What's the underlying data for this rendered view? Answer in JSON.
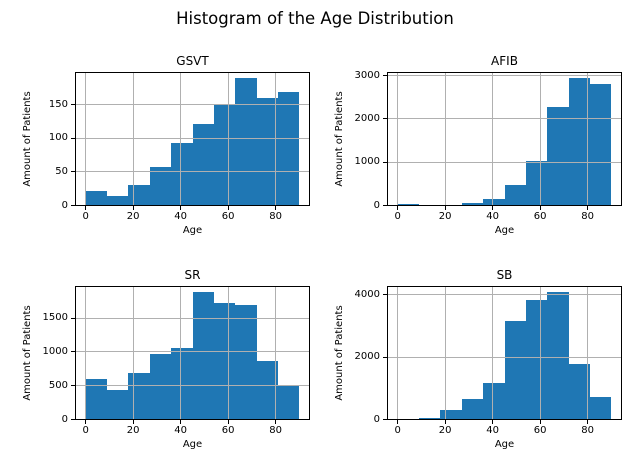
{
  "title": "Histogram of the Age Distribution",
  "colors": {
    "bar": "#1f77b4",
    "grid": "#b0b0b0",
    "spine": "#000000",
    "background": "#ffffff",
    "text": "#000000"
  },
  "chart_data": [
    {
      "type": "bar",
      "subtype": "histogram",
      "title": "GSVT",
      "xlabel": "Age",
      "ylabel": "Amount of Patients",
      "bin_edges": [
        0,
        9,
        18,
        27,
        36,
        45,
        54,
        63,
        72,
        81,
        90
      ],
      "values": [
        22,
        15,
        31,
        58,
        94,
        122,
        151,
        190,
        161,
        170
      ],
      "xlim": [
        -4.5,
        94.5
      ],
      "ylim": [
        0,
        199.5
      ],
      "xticks": [
        0,
        20,
        40,
        60,
        80
      ],
      "yticks": [
        0,
        50,
        100,
        150
      ],
      "grid": true,
      "legend": null
    },
    {
      "type": "bar",
      "subtype": "histogram",
      "title": "AFIB",
      "xlabel": "Age",
      "ylabel": "Amount of Patients",
      "bin_edges": [
        0,
        9,
        18,
        27,
        36,
        45,
        54,
        63,
        72,
        81,
        90
      ],
      "values": [
        40,
        12,
        32,
        70,
        170,
        480,
        1030,
        2290,
        2950,
        2810
      ],
      "xlim": [
        -4.5,
        94.5
      ],
      "ylim": [
        0,
        3097.5
      ],
      "xticks": [
        0,
        20,
        40,
        60,
        80
      ],
      "yticks": [
        0,
        1000,
        2000,
        3000
      ],
      "grid": true,
      "legend": null
    },
    {
      "type": "bar",
      "subtype": "histogram",
      "title": "SR",
      "xlabel": "Age",
      "ylabel": "Amount of Patients",
      "bin_edges": [
        0,
        9,
        18,
        27,
        36,
        45,
        54,
        63,
        72,
        81,
        90
      ],
      "values": [
        610,
        445,
        690,
        980,
        1060,
        1890,
        1740,
        1700,
        870,
        510
      ],
      "xlim": [
        -4.5,
        94.5
      ],
      "ylim": [
        0,
        1984.5
      ],
      "xticks": [
        0,
        20,
        40,
        60,
        80
      ],
      "yticks": [
        0,
        500,
        1000,
        1500
      ],
      "grid": true,
      "legend": null
    },
    {
      "type": "bar",
      "subtype": "histogram",
      "title": "SB",
      "xlabel": "Age",
      "ylabel": "Amount of Patients",
      "bin_edges": [
        0,
        9,
        18,
        27,
        36,
        45,
        54,
        63,
        72,
        81,
        90
      ],
      "values": [
        30,
        70,
        320,
        670,
        1200,
        3170,
        3840,
        4090,
        1800,
        750
      ],
      "xlim": [
        -4.5,
        94.5
      ],
      "ylim": [
        0,
        4294.5
      ],
      "xticks": [
        0,
        20,
        40,
        60,
        80
      ],
      "yticks": [
        0,
        2000,
        4000
      ],
      "grid": true,
      "legend": null
    }
  ]
}
